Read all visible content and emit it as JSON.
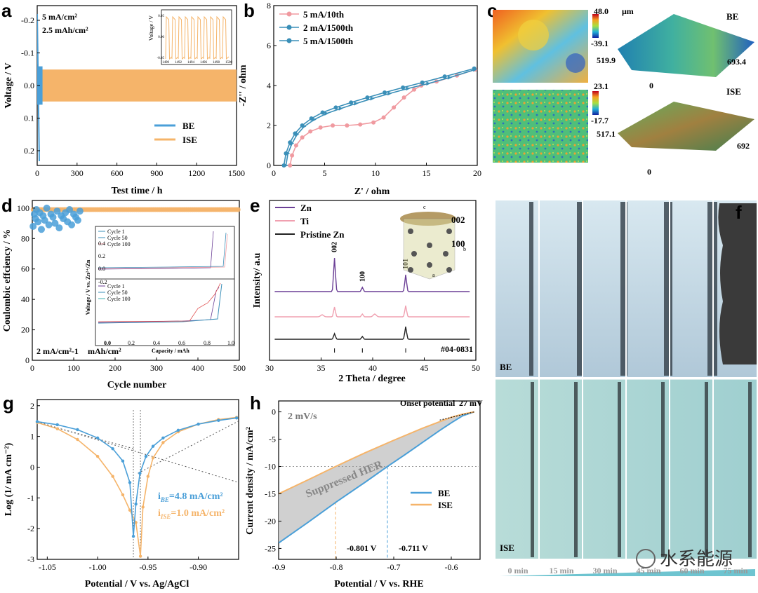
{
  "panel_letters": [
    "a",
    "b",
    "c",
    "d",
    "e",
    "f",
    "g",
    "h"
  ],
  "watermark": "水系能源",
  "colors": {
    "be": "#4a9fd8",
    "ise": "#f5b46a",
    "e_zn": "#6b3f96",
    "e_ti": "#f0a0b0",
    "e_pr": "#222222",
    "b_pink": "#f09aa0",
    "b_teal": "#3a8fb8"
  },
  "chart_data": [
    {
      "id": "a",
      "type": "line",
      "annotations": [
        "5 mA/cm²",
        "2.5 mAh/cm²"
      ],
      "xlabel": "Test time / h",
      "ylabel": "Voltage / V",
      "xlim": [
        0,
        1500
      ],
      "ylim": [
        -0.25,
        0.25
      ],
      "xticks": [
        "0",
        "300",
        "600",
        "900",
        "1200",
        "1500"
      ],
      "yticks": [
        "-0.2",
        "-0.1",
        "0.0",
        "0.1",
        "0.2"
      ],
      "series": [
        {
          "name": "BE",
          "color": "#4a9fd8",
          "amplitude_start": 0.23,
          "duration_h": 40
        },
        {
          "name": "ISE",
          "color": "#f5b46a",
          "amplitude_start": 0.05,
          "amplitude_end": 0.035,
          "duration_h": 1500
        }
      ],
      "inset": {
        "xlim": [
          1490,
          1500
        ],
        "ylim": [
          -0.05,
          0.05
        ],
        "xticks": [
          "1490",
          "1492",
          "1494",
          "1496",
          "1498",
          "1500"
        ],
        "yticks": [
          "-0.05",
          "0.00",
          "0.05"
        ],
        "ylabel": "Voltage / V"
      }
    },
    {
      "id": "b",
      "type": "line",
      "xlabel": "Z' / ohm",
      "ylabel": "-Z'' / ohm",
      "xlim": [
        0,
        20
      ],
      "ylim": [
        0,
        8
      ],
      "xticks": [
        "0",
        "5",
        "10",
        "15",
        "20"
      ],
      "yticks": [
        "0",
        "2",
        "4",
        "6",
        "8"
      ],
      "series": [
        {
          "name": "5 mA/10th",
          "color": "#f09aa0",
          "x": [
            1.6,
            1.8,
            2.2,
            2.8,
            3.6,
            4.6,
            5.8,
            7.2,
            8.5,
            9.8,
            10.8,
            11.8,
            12.8,
            13.8,
            14.5,
            16,
            18,
            19.8
          ],
          "y": [
            0,
            0.5,
            1.0,
            1.4,
            1.7,
            1.9,
            2.0,
            2.0,
            2.05,
            2.15,
            2.4,
            2.9,
            3.4,
            3.8,
            4.0,
            4.2,
            4.5,
            4.8
          ]
        },
        {
          "name": "2 mA/1500th",
          "color": "#3a8fb8",
          "x": [
            1.2,
            1.4,
            1.8,
            2.3,
            3.0,
            4.0,
            5.2,
            6.6,
            8.1,
            9.7,
            11.4,
            13.2,
            15.2,
            17.3,
            19.8
          ],
          "y": [
            0,
            0.6,
            1.1,
            1.55,
            1.95,
            2.3,
            2.6,
            2.85,
            3.1,
            3.35,
            3.6,
            3.85,
            4.1,
            4.4,
            4.8
          ]
        },
        {
          "name": "5 mA/1500th",
          "color": "#3a8fb8",
          "x": [
            1.0,
            1.2,
            1.6,
            2.1,
            2.8,
            3.7,
            4.8,
            6.1,
            7.6,
            9.2,
            10.9,
            12.7,
            14.6,
            16.8,
            19.7
          ],
          "y": [
            0,
            0.6,
            1.15,
            1.6,
            2.0,
            2.35,
            2.65,
            2.9,
            3.15,
            3.4,
            3.65,
            3.9,
            4.15,
            4.45,
            4.85
          ]
        }
      ]
    },
    {
      "id": "c",
      "type": "heatmap",
      "panels": [
        {
          "name": "BE",
          "max": "48.0",
          "min": "-39.1",
          "unit": "μm",
          "dim_left": "519.9",
          "dim_right": "693.4",
          "origin": "0"
        },
        {
          "name": "ISE",
          "max": "23.1",
          "min": "-17.7",
          "dim_left": "517.1",
          "dim_right": "692",
          "origin": "0"
        }
      ]
    },
    {
      "id": "d",
      "type": "scatter",
      "xlabel": "Cycle number",
      "ylabel": "Coulombic effciency / %",
      "xlim": [
        0,
        500
      ],
      "ylim": [
        0,
        105
      ],
      "xticks": [
        "0",
        "100",
        "200",
        "300",
        "400",
        "500"
      ],
      "yticks": [
        "0",
        "20",
        "40",
        "60",
        "80",
        "100"
      ],
      "annotation_main": "2 mA/cm²-1",
      "annotation_sub": "mAh/cm²",
      "series": [
        {
          "name": "BE",
          "color": "#4a9fd8",
          "x": [
            2,
            5,
            8,
            10,
            14,
            18,
            22,
            26,
            30,
            35,
            40,
            45,
            50,
            55,
            60,
            65,
            70,
            75,
            80,
            85,
            90,
            95,
            100,
            105,
            110,
            115
          ],
          "y": [
            88,
            96,
            93,
            99,
            91,
            97,
            86,
            95,
            92,
            100,
            89,
            96,
            94,
            90,
            98,
            87,
            95,
            93,
            97,
            91,
            99,
            89,
            96,
            94,
            92,
            98
          ]
        },
        {
          "name": "ISE",
          "color": "#f5b46a",
          "y_const": 99
        }
      ],
      "inset": {
        "legend_top": [
          "Cycle 1",
          "Cycle 50",
          "Cycle 100"
        ],
        "legend_bottom": [
          "Cycle 1",
          "Cycle 50",
          "Cycle 100"
        ],
        "xticks": [
          "0.0",
          "0.2",
          "0.4",
          "0.6",
          "0.8",
          "1.0"
        ],
        "yticks": [
          "-0.2",
          "0.0",
          "0.2",
          "0.4"
        ],
        "xlabel": "Capacity / mAh",
        "ylabel": "Voltage / V vs. Zn²⁺/Zn"
      }
    },
    {
      "id": "e",
      "type": "line",
      "xlabel": "2 Theta / degree",
      "ylabel": "Intensity/ a.u",
      "xlim": [
        30,
        50
      ],
      "xticks": [
        "30",
        "35",
        "40",
        "45",
        "50"
      ],
      "series": [
        {
          "name": "Zn",
          "color": "#6b3f96"
        },
        {
          "name": "Ti",
          "color": "#f0a0b0"
        },
        {
          "name": "Pristine Zn",
          "color": "#222222"
        }
      ],
      "peaks": [
        {
          "label": "002",
          "x": 36.3
        },
        {
          "label": "100",
          "x": 39.0
        },
        {
          "label": "101",
          "x": 43.2
        }
      ],
      "pdf_card": "#04-0831",
      "crystal_labels": [
        "002",
        "100"
      ],
      "axes_labels": [
        "c",
        "b",
        "a"
      ]
    },
    {
      "id": "f",
      "type": "image",
      "rows": [
        "BE",
        "ISE"
      ],
      "times": [
        "0 min",
        "15 min",
        "30 min",
        "45 min",
        "60 min",
        "75 min"
      ]
    },
    {
      "id": "g",
      "type": "line",
      "xlabel": "Potential / V vs. Ag/AgCl",
      "ylabel": "Log (1/ mA cm⁻²)",
      "xlim": [
        -1.06,
        -0.86
      ],
      "ylim": [
        -3,
        2.2
      ],
      "xticks": [
        "-1.05",
        "-1.00",
        "-0.95",
        "-0.90"
      ],
      "yticks": [
        "-3",
        "-2",
        "-1",
        "0",
        "1",
        "2"
      ],
      "series": [
        {
          "name": "BE",
          "color": "#4a9fd8",
          "x": [
            -1.06,
            -1.04,
            -1.02,
            -1.0,
            -0.985,
            -0.975,
            -0.968,
            -0.9645,
            -0.962,
            -0.958,
            -0.952,
            -0.945,
            -0.935,
            -0.92,
            -0.9,
            -0.88,
            -0.862
          ],
          "y": [
            1.48,
            1.38,
            1.22,
            0.95,
            0.6,
            0.2,
            -0.5,
            -2.25,
            -1.2,
            -0.2,
            0.35,
            0.68,
            0.95,
            1.2,
            1.4,
            1.52,
            1.6
          ]
        },
        {
          "name": "ISE",
          "color": "#f5b46a",
          "x": [
            -1.06,
            -1.04,
            -1.02,
            -1.0,
            -0.985,
            -0.975,
            -0.968,
            -0.962,
            -0.9575,
            -0.955,
            -0.95,
            -0.945,
            -0.935,
            -0.92,
            -0.9,
            -0.88,
            -0.862
          ],
          "y": [
            1.45,
            1.25,
            0.9,
            0.35,
            -0.3,
            -0.9,
            -1.4,
            -1.8,
            -2.9,
            -1.3,
            -0.3,
            0.3,
            0.8,
            1.15,
            1.4,
            1.55,
            1.62
          ]
        }
      ],
      "annotations": [
        {
          "label": "i",
          "sub": "BE",
          "value": "=4.8 mA/cm²"
        },
        {
          "label": "i",
          "sub": "ISE",
          "value": "=1.0 mA/cm²"
        }
      ]
    },
    {
      "id": "h",
      "type": "line",
      "annotation_scan": "2 mV/s",
      "annotation_onset": "Onset potential",
      "annotation_onset_value": "27 mV",
      "annotation_region": "Suppressed HER",
      "annotation_v1": "-0.801 V",
      "annotation_v2": "-0.711 V",
      "xlabel": "Potential / V vs. RHE",
      "ylabel": "Current density / mA/cm²",
      "xlim": [
        -0.9,
        -0.55
      ],
      "ylim": [
        -27,
        2
      ],
      "xticks": [
        "-0.9",
        "-0.8",
        "-0.7",
        "-0.6"
      ],
      "yticks": [
        "-25",
        "-20",
        "-15",
        "-10",
        "-5",
        "0"
      ],
      "series": [
        {
          "name": "BE",
          "color": "#4a9fd8",
          "x": [
            -0.9,
            -0.85,
            -0.8,
            -0.75,
            -0.711,
            -0.68,
            -0.65,
            -0.62,
            -0.6,
            -0.58,
            -0.56
          ],
          "y": [
            -24,
            -20.3,
            -16.5,
            -12.9,
            -10,
            -7.8,
            -5.6,
            -3.4,
            -2.0,
            -0.7,
            0
          ]
        },
        {
          "name": "ISE",
          "color": "#f5b46a",
          "x": [
            -0.9,
            -0.85,
            -0.801,
            -0.75,
            -0.7,
            -0.65,
            -0.62,
            -0.6,
            -0.58,
            -0.56
          ],
          "y": [
            -15,
            -12.5,
            -10,
            -7.5,
            -5.2,
            -3.0,
            -1.8,
            -1.0,
            -0.4,
            0
          ]
        }
      ]
    }
  ]
}
